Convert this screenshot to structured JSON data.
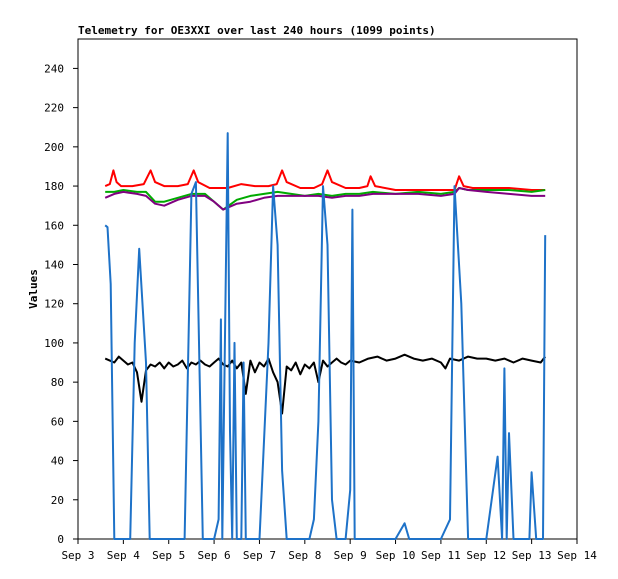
{
  "chart_data": {
    "type": "line",
    "title": "Telemetry for OE3XXI over last 240 hours (1099 points)",
    "xlabel": "",
    "ylabel": "Values",
    "xlim": [
      0,
      11
    ],
    "ylim": [
      0,
      255
    ],
    "yticks": [
      0,
      20,
      40,
      60,
      80,
      100,
      120,
      140,
      160,
      180,
      200,
      220,
      240
    ],
    "xticks": [
      {
        "x": 0,
        "label": "Sep 3"
      },
      {
        "x": 1,
        "label": "Sep 4"
      },
      {
        "x": 2,
        "label": "Sep 5"
      },
      {
        "x": 3,
        "label": "Sep 6"
      },
      {
        "x": 4,
        "label": "Sep 7"
      },
      {
        "x": 5,
        "label": "Sep 8"
      },
      {
        "x": 6,
        "label": "Sep 9"
      },
      {
        "x": 7,
        "label": "Sep 10"
      },
      {
        "x": 8,
        "label": "Sep 11"
      },
      {
        "x": 9,
        "label": "Sep 12"
      },
      {
        "x": 10,
        "label": "Sep 13"
      },
      {
        "x": 11,
        "label": "Sep 14"
      }
    ],
    "grid": false,
    "series": [
      {
        "color": "#ff0000",
        "x": [
          0.6,
          0.7,
          0.78,
          0.85,
          0.95,
          1.2,
          1.45,
          1.6,
          1.7,
          1.9,
          2.2,
          2.42,
          2.55,
          2.65,
          2.9,
          3.3,
          3.6,
          3.9,
          4.2,
          4.38,
          4.5,
          4.6,
          4.9,
          5.2,
          5.38,
          5.5,
          5.6,
          5.9,
          6.2,
          6.38,
          6.45,
          6.55,
          7.0,
          7.5,
          8.0,
          8.3,
          8.4,
          8.5,
          8.7,
          9.0,
          9.5,
          10.0,
          10.3
        ],
        "y": [
          180,
          181,
          188,
          182,
          180,
          180,
          181,
          188,
          182,
          180,
          180,
          181,
          188,
          182,
          179,
          179,
          181,
          180,
          180,
          181,
          188,
          182,
          179,
          179,
          181,
          188,
          182,
          179,
          179,
          180,
          185,
          180,
          178,
          178,
          178,
          178,
          185,
          180,
          179,
          179,
          179,
          178,
          178
        ]
      },
      {
        "color": "#00aa00",
        "x": [
          0.6,
          0.8,
          1.0,
          1.3,
          1.5,
          1.7,
          1.9,
          2.2,
          2.5,
          2.8,
          3.0,
          3.2,
          3.5,
          3.8,
          4.1,
          4.4,
          4.7,
          5.0,
          5.3,
          5.6,
          5.9,
          6.2,
          6.5,
          7.0,
          7.5,
          8.0,
          8.3,
          8.4,
          8.6,
          9.0,
          9.5,
          10.0,
          10.3
        ],
        "y": [
          177,
          177,
          178,
          177,
          177,
          172,
          172,
          174,
          176,
          176,
          172,
          168,
          173,
          175,
          176,
          177,
          176,
          175,
          176,
          175,
          176,
          176,
          177,
          176,
          177,
          176,
          177,
          179,
          178,
          178,
          178,
          177,
          178
        ]
      },
      {
        "color": "#800080",
        "x": [
          0.6,
          0.8,
          1.0,
          1.3,
          1.5,
          1.7,
          1.9,
          2.2,
          2.5,
          2.8,
          3.0,
          3.2,
          3.5,
          3.8,
          4.1,
          4.4,
          4.7,
          5.0,
          5.3,
          5.6,
          5.9,
          6.2,
          6.5,
          7.0,
          7.5,
          8.0,
          8.3,
          8.4,
          8.6,
          9.0,
          9.5,
          10.0,
          10.3
        ],
        "y": [
          174,
          176,
          177,
          176,
          175,
          171,
          170,
          173,
          175,
          175,
          172,
          168,
          171,
          172,
          174,
          175,
          175,
          175,
          175,
          174,
          175,
          175,
          176,
          176,
          176,
          175,
          176,
          179,
          178,
          177,
          176,
          175,
          175
        ]
      },
      {
        "color": "#000000",
        "x": [
          0.6,
          0.7,
          0.8,
          0.9,
          1.0,
          1.1,
          1.2,
          1.3,
          1.4,
          1.5,
          1.6,
          1.7,
          1.8,
          1.9,
          2.0,
          2.1,
          2.2,
          2.3,
          2.4,
          2.5,
          2.6,
          2.7,
          2.8,
          2.9,
          3.0,
          3.1,
          3.2,
          3.3,
          3.4,
          3.5,
          3.6,
          3.7,
          3.8,
          3.9,
          4.0,
          4.1,
          4.2,
          4.3,
          4.4,
          4.5,
          4.6,
          4.7,
          4.8,
          4.9,
          5.0,
          5.1,
          5.2,
          5.3,
          5.4,
          5.5,
          5.6,
          5.7,
          5.8,
          5.9,
          6.0,
          6.2,
          6.4,
          6.6,
          6.8,
          7.0,
          7.2,
          7.4,
          7.6,
          7.8,
          8.0,
          8.1,
          8.2,
          8.4,
          8.6,
          8.8,
          9.0,
          9.2,
          9.4,
          9.6,
          9.8,
          10.0,
          10.2,
          10.3
        ],
        "y": [
          92,
          91,
          90,
          93,
          91,
          89,
          90,
          85,
          70,
          86,
          89,
          88,
          90,
          87,
          90,
          88,
          89,
          91,
          87,
          90,
          89,
          91,
          89,
          88,
          90,
          92,
          89,
          88,
          91,
          87,
          90,
          74,
          91,
          85,
          90,
          88,
          92,
          85,
          80,
          64,
          88,
          86,
          90,
          84,
          89,
          87,
          90,
          80,
          91,
          88,
          90,
          92,
          90,
          89,
          91,
          90,
          92,
          93,
          91,
          92,
          94,
          92,
          91,
          92,
          90,
          87,
          92,
          91,
          93,
          92,
          92,
          91,
          92,
          90,
          92,
          91,
          90,
          93
        ]
      },
      {
        "color": "#1e72c8",
        "x": [
          0.6,
          0.65,
          0.72,
          0.8,
          1.0,
          1.15,
          1.25,
          1.35,
          1.5,
          1.58,
          1.7,
          2.0,
          2.35,
          2.5,
          2.6,
          2.75,
          3.0,
          3.1,
          3.15,
          3.18,
          3.3,
          3.35,
          3.4,
          3.45,
          3.5,
          3.6,
          3.65,
          3.7,
          3.9,
          4.0,
          4.2,
          4.3,
          4.4,
          4.5,
          4.6,
          4.7,
          5.0,
          5.1,
          5.2,
          5.3,
          5.4,
          5.5,
          5.6,
          5.7,
          5.8,
          5.9,
          6.0,
          6.05,
          6.1,
          6.2,
          6.3,
          6.5,
          7.0,
          7.2,
          7.3,
          7.5,
          8.0,
          8.2,
          8.3,
          8.45,
          8.6,
          9.0,
          9.25,
          9.35,
          9.4,
          9.45,
          9.5,
          9.6,
          9.7,
          9.85,
          9.95,
          10.0,
          10.1,
          10.2,
          10.25,
          10.3
        ],
        "y": [
          160,
          159,
          130,
          0,
          0,
          0,
          100,
          148,
          90,
          0,
          0,
          0,
          0,
          176,
          182,
          0,
          0,
          10,
          112,
          0,
          207,
          55,
          0,
          100,
          0,
          0,
          90,
          0,
          0,
          0,
          100,
          180,
          150,
          35,
          0,
          0,
          0,
          0,
          10,
          60,
          180,
          150,
          20,
          0,
          0,
          0,
          25,
          168,
          0,
          0,
          0,
          0,
          0,
          8,
          0,
          0,
          0,
          10,
          180,
          120,
          0,
          0,
          42,
          0,
          87,
          0,
          54,
          0,
          0,
          0,
          0,
          34,
          0,
          0,
          0,
          155
        ]
      }
    ]
  }
}
